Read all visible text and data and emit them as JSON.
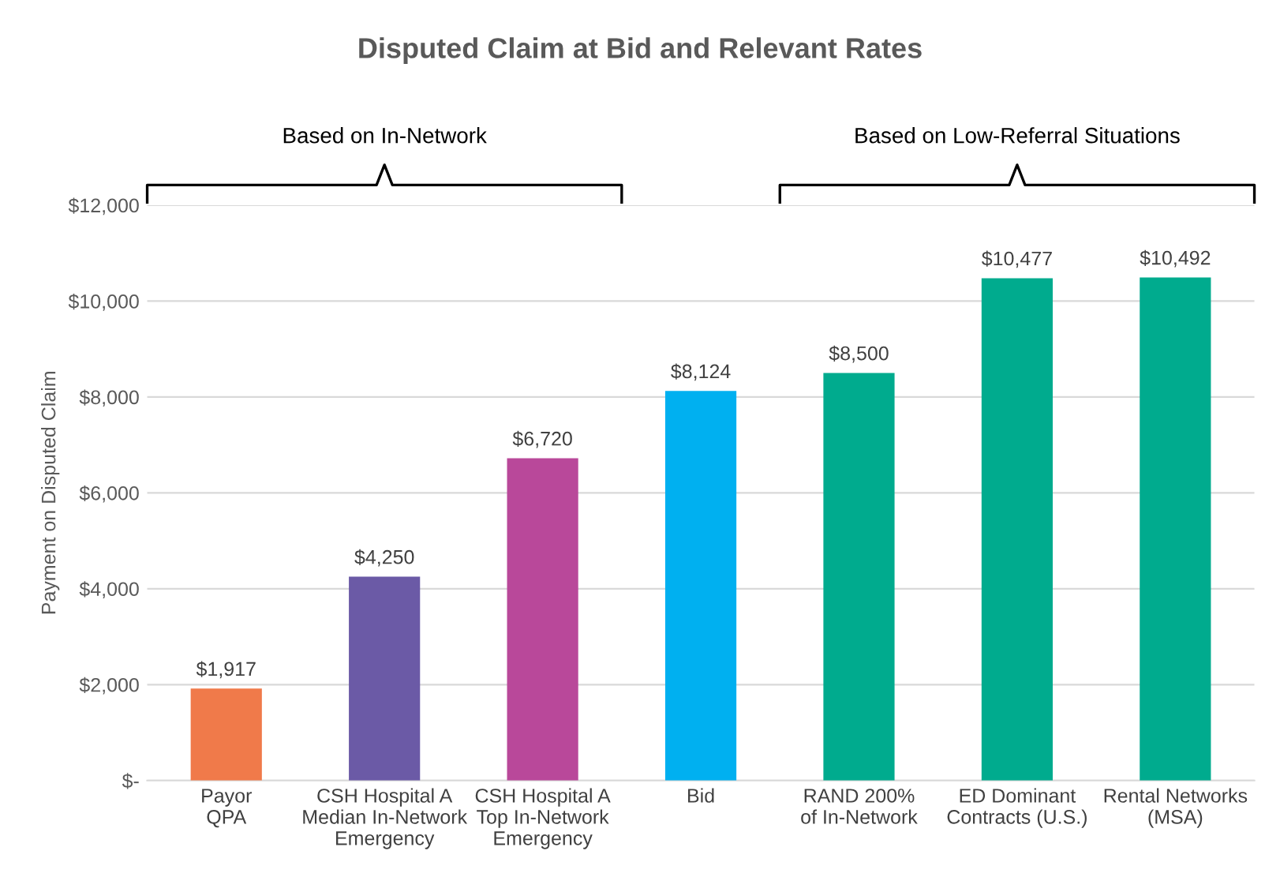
{
  "chart_data": {
    "type": "bar",
    "title": "Disputed Claim at Bid and Relevant Rates",
    "ylabel": "Payment on Disputed Claim",
    "categories": [
      "Payor\nQPA",
      "CSH Hospital A\nMedian In-Network\nEmergency",
      "CSH Hospital A\nTop In-Network\nEmergency",
      "Bid",
      "RAND 200%\nof In-Network",
      "ED Dominant\nContracts (U.S.)",
      "Rental Networks\n(MSA)"
    ],
    "values": [
      1917,
      4250,
      6720,
      8124,
      8500,
      10477,
      10492
    ],
    "colors": [
      "#f07a4a",
      "#6b5aa6",
      "#b9489a",
      "#00b0f0",
      "#00ab8e",
      "#00ab8e",
      "#00ab8e"
    ],
    "value_labels": [
      "$1,917",
      "$4,250",
      "$6,720",
      "$8,124",
      "$8,500",
      "$10,477",
      "$10,492"
    ],
    "ylim": [
      0,
      12000
    ],
    "yticks": [
      {
        "value": 0,
        "label": "$-"
      },
      {
        "value": 2000,
        "label": "$2,000"
      },
      {
        "value": 4000,
        "label": "$4,000"
      },
      {
        "value": 6000,
        "label": "$6,000"
      },
      {
        "value": 8000,
        "label": "$8,000"
      },
      {
        "value": 10000,
        "label": "$10,000"
      },
      {
        "value": 12000,
        "label": "$12,000"
      }
    ],
    "grid": "y",
    "annotations": [
      "Based on In-Network",
      "Based on Low-Referral Situations"
    ]
  }
}
